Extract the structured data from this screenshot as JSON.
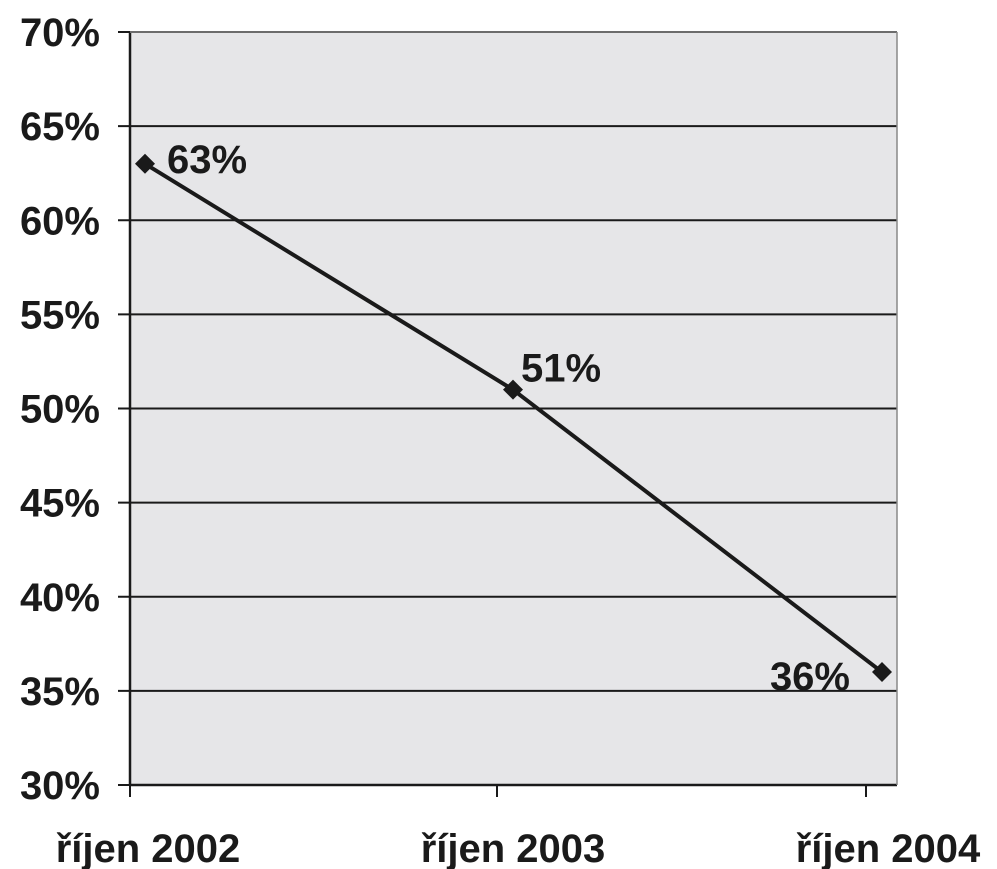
{
  "chart_data": {
    "type": "line",
    "categories": [
      "říjen 2002",
      "říjen 2003",
      "říjen 2004"
    ],
    "series": [
      {
        "values": [
          63,
          51,
          36
        ]
      }
    ],
    "data_labels": [
      "63%",
      "51%",
      "36%"
    ],
    "y_ticks": [
      "30%",
      "35%",
      "40%",
      "45%",
      "50%",
      "55%",
      "60%",
      "65%",
      "70%"
    ],
    "ylim": [
      30,
      70
    ],
    "y_step": 5,
    "grid": true,
    "colors": {
      "plot_background": "#e6e6e8",
      "line": "#1a1a1a",
      "marker": "#1a1a1a",
      "grid": "#1a1a1a"
    }
  }
}
